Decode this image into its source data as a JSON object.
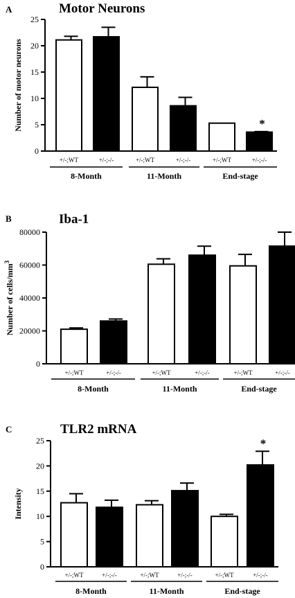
{
  "chart_data": [
    {
      "type": "bar",
      "panel": "A",
      "title": "Motor Neurons",
      "ylabel": "Number of motor neurons",
      "ylim": [
        0,
        25
      ],
      "yticks": [
        0,
        5,
        10,
        15,
        20,
        25
      ],
      "ytick_labels": [
        "0",
        "5",
        "10",
        "15",
        "20",
        "25"
      ],
      "categories": [
        "+/-;WT",
        "+/-;-/-",
        "+/-;WT",
        "+/-;-/-",
        "+/-;WT",
        "+/-;-/-"
      ],
      "groups": [
        "8-Month",
        "11-Month",
        "End-stage"
      ],
      "values": [
        21.1,
        21.7,
        12.1,
        8.6,
        5.3,
        3.6
      ],
      "errors": [
        0.7,
        1.8,
        2.0,
        1.6,
        0.0,
        0.1
      ],
      "fills": [
        "white",
        "black",
        "white",
        "black",
        "white",
        "black"
      ],
      "significance": [
        "",
        "",
        "",
        "",
        "",
        "*"
      ]
    },
    {
      "type": "bar",
      "panel": "B",
      "title": "Iba-1",
      "ylabel": "Number of cells/mm",
      "ylabel_sup": "3",
      "ylim": [
        0,
        80000
      ],
      "yticks": [
        0,
        20000,
        40000,
        60000,
        80000
      ],
      "ytick_labels": [
        "0",
        "20000",
        "40000",
        "60000",
        "80000"
      ],
      "categories": [
        "+/-;WT",
        "+/-;-/-",
        "+/-;WT",
        "+/-;-/-",
        "+/-;WT",
        "+/-;-/-"
      ],
      "groups": [
        "8-Month",
        "11-Month",
        "End-stage"
      ],
      "values": [
        21000,
        26000,
        60500,
        66000,
        59500,
        71500
      ],
      "errors": [
        800,
        1200,
        3300,
        5500,
        7000,
        8500
      ],
      "fills": [
        "white",
        "black",
        "white",
        "black",
        "white",
        "black"
      ],
      "significance": [
        "",
        "",
        "",
        "",
        "",
        ""
      ]
    },
    {
      "type": "bar",
      "panel": "C",
      "title": "TLR2 mRNA",
      "ylabel": "Intensity",
      "ylim": [
        0,
        25
      ],
      "yticks": [
        0,
        5,
        10,
        15,
        20,
        25
      ],
      "ytick_labels": [
        "0",
        "5",
        "10",
        "15",
        "20",
        "25"
      ],
      "categories": [
        "+/-;WT",
        "+/-;-/-",
        "+/-;WT",
        "+/-;-/-",
        "+/-;WT",
        "+/-;-/-"
      ],
      "groups": [
        "8-Month",
        "11-Month",
        "End-stage"
      ],
      "values": [
        12.7,
        11.8,
        12.3,
        15.1,
        10.0,
        20.2
      ],
      "errors": [
        1.8,
        1.4,
        0.8,
        1.5,
        0.4,
        2.7
      ],
      "fills": [
        "white",
        "black",
        "white",
        "black",
        "white",
        "black"
      ],
      "significance": [
        "",
        "",
        "",
        "",
        "",
        "*"
      ]
    }
  ],
  "colors": {
    "open_bar": "#ffffff",
    "filled_bar": "#000000",
    "axis": "#000000"
  }
}
